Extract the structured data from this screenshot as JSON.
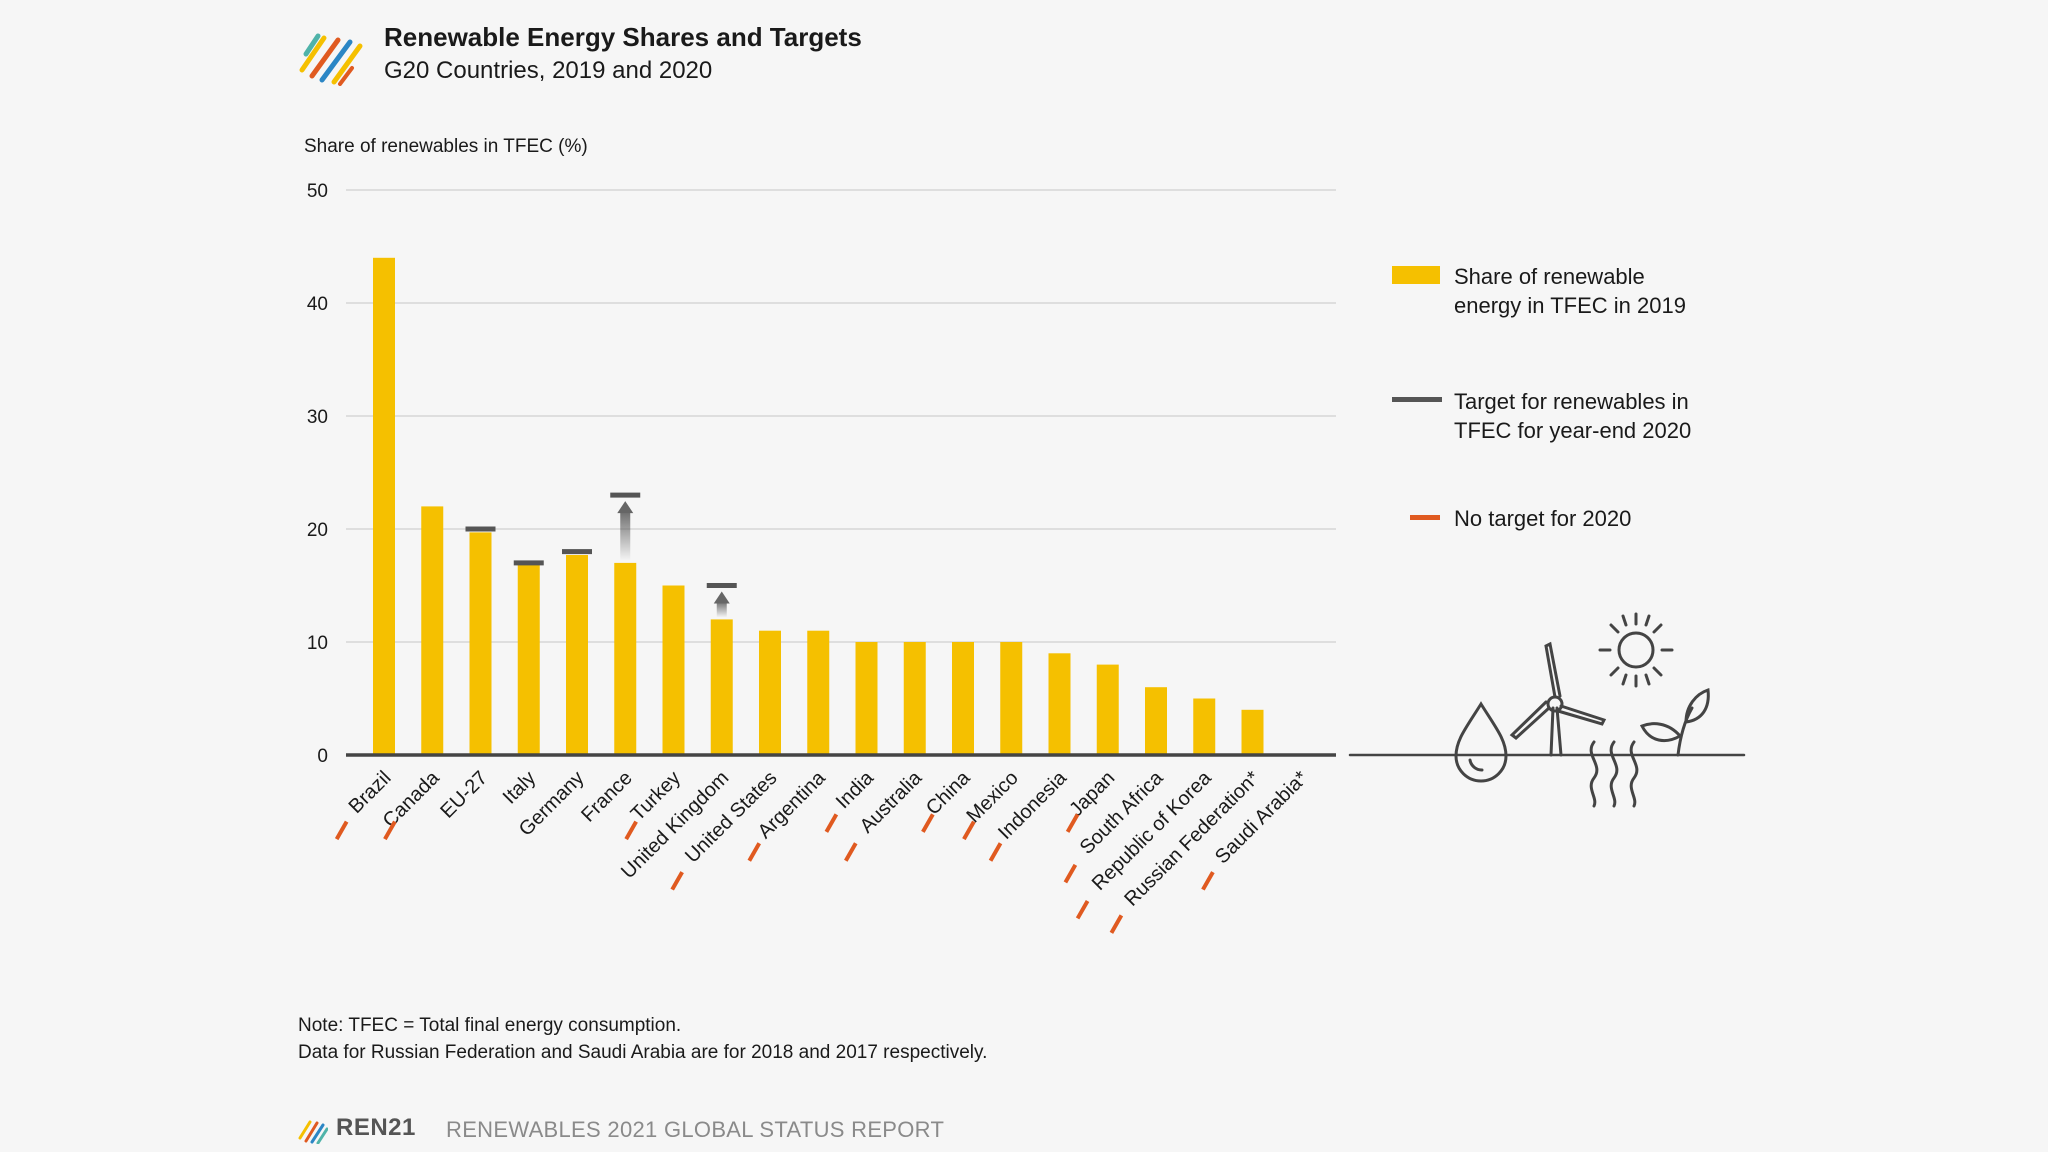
{
  "header": {
    "title": "Renewable Energy Shares and Targets",
    "subtitle": "G20 Countries, 2019 and 2020"
  },
  "chart_data": {
    "type": "bar",
    "ylabel": "Share of renewables in TFEC (%)",
    "ylim": [
      0,
      50
    ],
    "yticks": [
      0,
      10,
      20,
      30,
      40,
      50
    ],
    "grid": true,
    "categories": [
      "Brazil",
      "Canada",
      "EU-27",
      "Italy",
      "Germany",
      "France",
      "Turkey",
      "United Kingdom",
      "United States",
      "Argentina",
      "India",
      "Australia",
      "China",
      "Mexico",
      "Indonesia",
      "Japan",
      "South Africa",
      "Republic of Korea",
      "Russian Federation*",
      "Saudi Arabia*"
    ],
    "series": [
      {
        "name": "Share of renewable energy in TFEC in 2019",
        "color": "#f5c000",
        "values": [
          44,
          22,
          19.7,
          17,
          17.7,
          17,
          15,
          12,
          11,
          11,
          10,
          10,
          10,
          10,
          9,
          8,
          6,
          5,
          4,
          0
        ]
      },
      {
        "name": "Target for renewables in TFEC for year-end 2020",
        "color": "#555555",
        "values": [
          null,
          null,
          20,
          17,
          18,
          23,
          null,
          15,
          null,
          null,
          null,
          null,
          null,
          null,
          null,
          null,
          null,
          null,
          null,
          null
        ]
      }
    ],
    "no_target_2020": [
      true,
      true,
      false,
      false,
      false,
      false,
      true,
      false,
      true,
      true,
      true,
      true,
      true,
      true,
      true,
      true,
      true,
      true,
      true,
      true
    ],
    "no_target_color": "#e05a20",
    "legend": [
      {
        "label": "Share of renewable energy in TFEC in 2019",
        "color": "#f5c000"
      },
      {
        "label": "Target for renewables in TFEC for year-end 2020",
        "color": "#555555"
      },
      {
        "label": "No target for 2020",
        "color": "#e05a20"
      }
    ],
    "legend_position": "right"
  },
  "legend": {
    "share_label": "Share of renewable energy in TFEC in 2019",
    "target_label": "Target for renewables in TFEC for year-end 2020",
    "no_target_label": "No target for 2020"
  },
  "notes": {
    "line1": "Note: TFEC = Total final energy consumption.",
    "line2": "Data for Russian Federation and Saudi Arabia are for 2018 and 2017 respectively."
  },
  "footer": {
    "brand": "REN21",
    "report": "RENEWABLES 2021 GLOBAL STATUS REPORT"
  },
  "colors": {
    "bar": "#f5c000",
    "target": "#555555",
    "no_target": "#e05a20",
    "grid": "#cfcfcf",
    "axis": "#444444"
  }
}
